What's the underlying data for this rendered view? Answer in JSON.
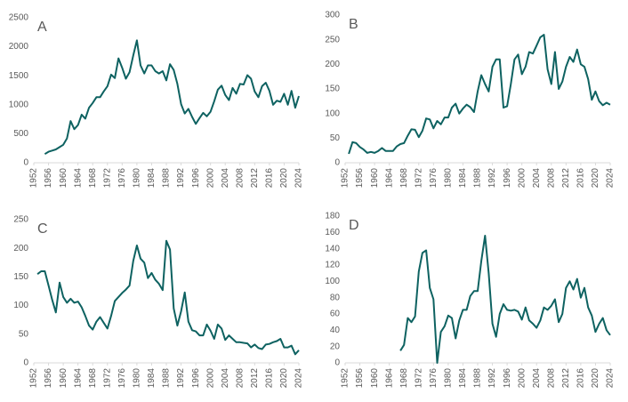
{
  "chart_data": [
    {
      "type": "line",
      "title": "A",
      "color": "#0e6261",
      "x": [
        1955,
        1956,
        1957,
        1958,
        1959,
        1960,
        1961,
        1962,
        1963,
        1964,
        1965,
        1966,
        1967,
        1968,
        1969,
        1970,
        1971,
        1972,
        1973,
        1974,
        1975,
        1976,
        1977,
        1978,
        1979,
        1980,
        1981,
        1982,
        1983,
        1984,
        1985,
        1986,
        1987,
        1988,
        1989,
        1990,
        1991,
        1992,
        1993,
        1994,
        1995,
        1996,
        1997,
        1998,
        1999,
        2000,
        2001,
        2002,
        2003,
        2004,
        2005,
        2006,
        2007,
        2008,
        2009,
        2010,
        2011,
        2012,
        2013,
        2014,
        2015,
        2016,
        2017,
        2018,
        2019,
        2020,
        2021,
        2022,
        2023,
        2024
      ],
      "values": [
        150,
        190,
        210,
        230,
        270,
        310,
        420,
        720,
        580,
        650,
        830,
        760,
        950,
        1030,
        1130,
        1130,
        1230,
        1320,
        1520,
        1460,
        1800,
        1640,
        1450,
        1560,
        1850,
        2110,
        1680,
        1540,
        1680,
        1680,
        1580,
        1540,
        1580,
        1420,
        1700,
        1600,
        1360,
        1010,
        850,
        930,
        790,
        670,
        770,
        860,
        800,
        880,
        1060,
        1260,
        1330,
        1170,
        1080,
        1290,
        1190,
        1360,
        1350,
        1510,
        1450,
        1230,
        1130,
        1320,
        1380,
        1240,
        1000,
        1070,
        1050,
        1190,
        1000,
        1240,
        950,
        1150
      ],
      "xlim": [
        1952,
        2024
      ],
      "xticks": [
        1952,
        1956,
        1960,
        1964,
        1968,
        1972,
        1976,
        1980,
        1984,
        1988,
        1992,
        1996,
        2000,
        2004,
        2008,
        2012,
        2016,
        2020,
        2024
      ],
      "ylim": [
        0,
        2500
      ],
      "yticks": [
        0,
        500,
        1000,
        1500,
        2000,
        2500
      ]
    },
    {
      "type": "line",
      "title": "B",
      "color": "#0e6261",
      "x": [
        1953,
        1954,
        1955,
        1956,
        1957,
        1958,
        1959,
        1960,
        1961,
        1962,
        1963,
        1964,
        1965,
        1966,
        1967,
        1968,
        1969,
        1970,
        1971,
        1972,
        1973,
        1974,
        1975,
        1976,
        1977,
        1978,
        1979,
        1980,
        1981,
        1982,
        1983,
        1984,
        1985,
        1986,
        1987,
        1988,
        1989,
        1990,
        1991,
        1992,
        1993,
        1994,
        1995,
        1996,
        1997,
        1998,
        1999,
        2000,
        2001,
        2002,
        2003,
        2004,
        2005,
        2006,
        2007,
        2008,
        2009,
        2010,
        2011,
        2012,
        2013,
        2014,
        2015,
        2016,
        2017,
        2018,
        2019,
        2020,
        2021,
        2022,
        2023,
        2024
      ],
      "values": [
        18,
        42,
        40,
        32,
        27,
        20,
        22,
        20,
        24,
        30,
        24,
        24,
        24,
        33,
        38,
        40,
        55,
        68,
        67,
        52,
        65,
        90,
        88,
        70,
        85,
        78,
        92,
        92,
        112,
        120,
        100,
        110,
        118,
        113,
        103,
        145,
        178,
        160,
        145,
        195,
        210,
        210,
        112,
        115,
        160,
        210,
        220,
        180,
        195,
        225,
        222,
        238,
        255,
        260,
        190,
        160,
        225,
        150,
        165,
        195,
        215,
        205,
        230,
        200,
        195,
        170,
        128,
        145,
        125,
        117,
        122,
        118
      ],
      "xlim": [
        1952,
        2024
      ],
      "xticks": [
        1952,
        1956,
        1960,
        1964,
        1968,
        1972,
        1976,
        1980,
        1984,
        1988,
        1992,
        1996,
        2000,
        2004,
        2008,
        2012,
        2016,
        2020,
        2024
      ],
      "ylim": [
        0,
        300
      ],
      "yticks": [
        0,
        50,
        100,
        150,
        200,
        250,
        300
      ]
    },
    {
      "type": "line",
      "title": "C",
      "color": "#0e6261",
      "x": [
        1953,
        1954,
        1955,
        1956,
        1957,
        1958,
        1959,
        1960,
        1961,
        1962,
        1963,
        1964,
        1965,
        1966,
        1967,
        1968,
        1969,
        1970,
        1971,
        1972,
        1973,
        1974,
        1975,
        1976,
        1977,
        1978,
        1979,
        1980,
        1981,
        1982,
        1983,
        1984,
        1985,
        1986,
        1987,
        1988,
        1989,
        1990,
        1991,
        1992,
        1993,
        1994,
        1995,
        1996,
        1997,
        1998,
        1999,
        2000,
        2001,
        2002,
        2003,
        2004,
        2005,
        2006,
        2007,
        2008,
        2009,
        2010,
        2011,
        2012,
        2013,
        2014,
        2015,
        2016,
        2017,
        2018,
        2019,
        2020,
        2021,
        2022,
        2023,
        2024
      ],
      "values": [
        155,
        160,
        160,
        135,
        110,
        88,
        140,
        115,
        105,
        112,
        105,
        107,
        97,
        82,
        65,
        58,
        72,
        80,
        70,
        60,
        82,
        108,
        115,
        122,
        128,
        135,
        178,
        205,
        182,
        175,
        148,
        157,
        145,
        138,
        127,
        213,
        198,
        95,
        65,
        90,
        123,
        72,
        57,
        55,
        48,
        48,
        67,
        56,
        42,
        67,
        60,
        40,
        48,
        42,
        36,
        36,
        35,
        34,
        27,
        32,
        26,
        24,
        32,
        33,
        36,
        38,
        42,
        27,
        27,
        30,
        15,
        22
      ],
      "xlim": [
        1952,
        2024
      ],
      "xticks": [
        1952,
        1956,
        1960,
        1964,
        1968,
        1972,
        1976,
        1980,
        1984,
        1988,
        1992,
        1996,
        2000,
        2004,
        2008,
        2012,
        2016,
        2020,
        2024
      ],
      "ylim": [
        0,
        250
      ],
      "yticks": [
        0,
        50,
        100,
        150,
        200,
        250
      ]
    },
    {
      "type": "line",
      "title": "D",
      "color": "#0e6261",
      "x": [
        1967,
        1968,
        1969,
        1970,
        1971,
        1972,
        1973,
        1974,
        1975,
        1976,
        1977,
        1978,
        1979,
        1980,
        1981,
        1982,
        1983,
        1984,
        1985,
        1986,
        1987,
        1988,
        1989,
        1990,
        1991,
        1992,
        1993,
        1994,
        1995,
        1996,
        1997,
        1998,
        1999,
        2000,
        2001,
        2002,
        2003,
        2004,
        2005,
        2006,
        2007,
        2008,
        2009,
        2010,
        2011,
        2012,
        2013,
        2014,
        2015,
        2016,
        2017,
        2018,
        2019,
        2020,
        2021,
        2022,
        2023,
        2024
      ],
      "values": [
        15,
        22,
        55,
        50,
        57,
        112,
        135,
        138,
        92,
        78,
        0,
        38,
        45,
        58,
        55,
        30,
        52,
        65,
        65,
        82,
        88,
        88,
        125,
        156,
        110,
        48,
        32,
        60,
        72,
        65,
        64,
        65,
        63,
        53,
        68,
        52,
        48,
        43,
        52,
        68,
        65,
        70,
        78,
        50,
        60,
        92,
        100,
        90,
        103,
        80,
        92,
        68,
        58,
        38,
        48,
        55,
        40,
        34
      ],
      "xlim": [
        1952,
        2024
      ],
      "xticks": [
        1952,
        1956,
        1960,
        1964,
        1968,
        1972,
        1976,
        1980,
        1984,
        1988,
        1992,
        1996,
        2000,
        2004,
        2008,
        2012,
        2016,
        2020,
        2024
      ],
      "ylim": [
        0,
        180
      ],
      "yticks": [
        0,
        20,
        40,
        60,
        80,
        100,
        120,
        140,
        160,
        180
      ]
    }
  ]
}
